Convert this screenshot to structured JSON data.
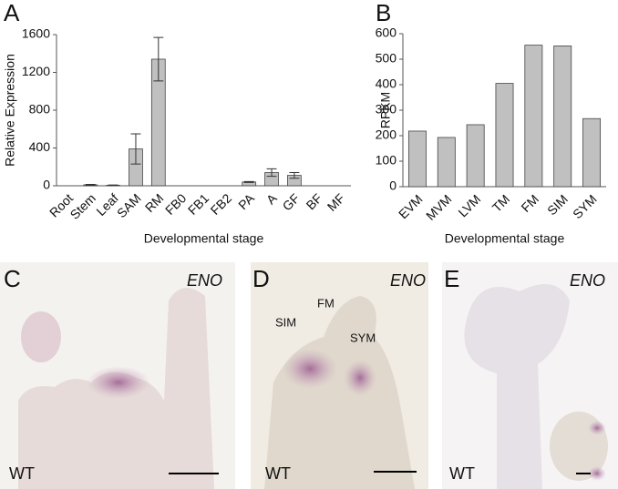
{
  "panel_labels": [
    "A",
    "B",
    "C",
    "D",
    "E"
  ],
  "chart_data": [
    {
      "type": "bar",
      "ylabel": "Relative Expression",
      "xlabel": "Developmental stage",
      "categories": [
        "Root",
        "Stem",
        "Leaf",
        "SAM",
        "RM",
        "FB0",
        "FB1",
        "FB2",
        "PA",
        "A",
        "GF",
        "BF",
        "MF"
      ],
      "values": [
        0,
        10,
        5,
        390,
        1340,
        0,
        0,
        0,
        40,
        140,
        110,
        0,
        0
      ],
      "errors": [
        0,
        5,
        3,
        160,
        230,
        0,
        0,
        0,
        5,
        40,
        30,
        0,
        0
      ],
      "color": "#c0c0c0",
      "ylim": [
        0,
        1600
      ],
      "yticks": [
        0,
        400,
        800,
        1200,
        1600
      ]
    },
    {
      "type": "bar",
      "ylabel": "RPKM",
      "xlabel": "Developmental stage",
      "categories": [
        "EVM",
        "MVM",
        "LVM",
        "TM",
        "FM",
        "SIM",
        "SYM"
      ],
      "values": [
        218,
        193,
        243,
        405,
        555,
        552,
        267
      ],
      "color": "#c0c0c0",
      "ylim": [
        0,
        600
      ],
      "yticks": [
        0,
        100,
        200,
        300,
        400,
        500,
        600
      ]
    }
  ],
  "micrographs": [
    {
      "gene": "ENO",
      "genotype": "WT"
    },
    {
      "gene": "ENO",
      "genotype": "WT",
      "annotations": [
        "SIM",
        "FM",
        "SYM"
      ]
    },
    {
      "gene": "ENO",
      "genotype": "WT"
    }
  ]
}
